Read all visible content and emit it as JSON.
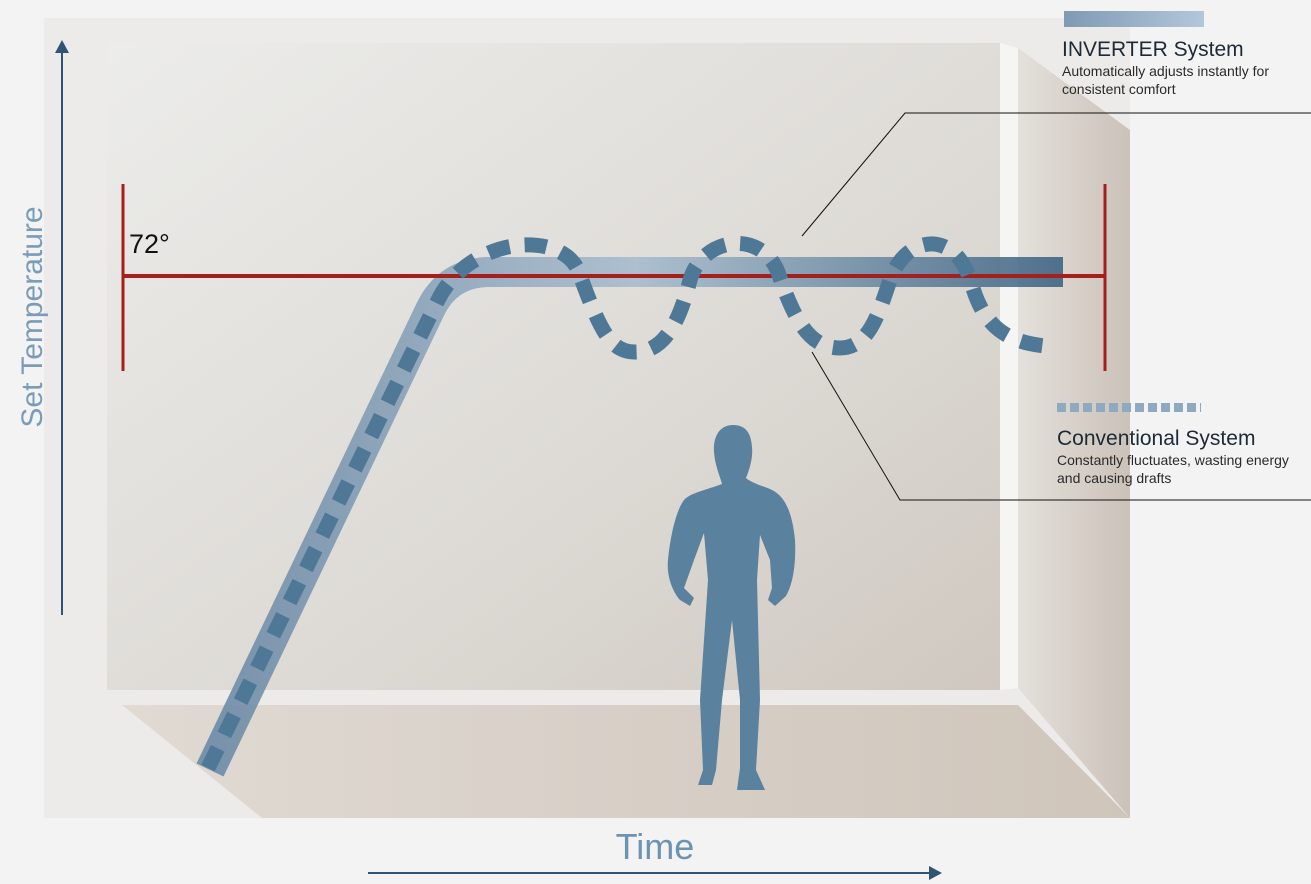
{
  "set_temperature": "72°",
  "axes": {
    "y_label": "Set Temperature",
    "x_label": "Time"
  },
  "legend": {
    "inverter": {
      "title": "INVERTER System",
      "description": "Automatically adjusts instantly for consistent comfort"
    },
    "conventional": {
      "title": "Conventional System",
      "description": "Constantly fluctuates, wasting energy and causing drafts"
    }
  },
  "colors": {
    "setpoint_line": "#a3201c",
    "inverter_line": "#6f8ea8",
    "conventional_line": "#4f7896",
    "person": "#5a819d",
    "axis_arrow": "#2e5576"
  },
  "icons": [
    "person-silhouette-icon",
    "up-arrow-icon",
    "right-arrow-icon"
  ]
}
